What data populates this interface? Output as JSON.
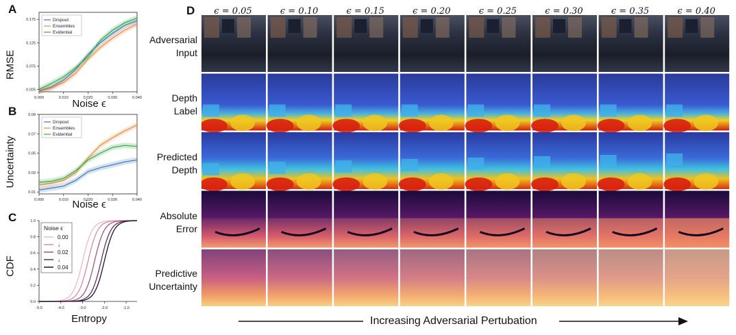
{
  "panels": {
    "a": {
      "letter": "A",
      "ylabel": "RMSE",
      "xlabel": "Noise ϵ"
    },
    "b": {
      "letter": "B",
      "ylabel": "Uncertainty",
      "xlabel": "Noise ϵ"
    },
    "c": {
      "letter": "C",
      "ylabel": "CDF",
      "xlabel": "Entropy",
      "legend_title": "Noise ϵ",
      "legend_labels": [
        "0.00",
        "0.02",
        "0.04"
      ],
      "legend_arrow": "↓"
    },
    "d": {
      "letter": "D"
    }
  },
  "grid": {
    "columns": [
      "ϵ = 0.05",
      "ϵ = 0.10",
      "ϵ = 0.15",
      "ϵ = 0.20",
      "ϵ = 0.25",
      "ϵ = 0.30",
      "ϵ = 0.35",
      "ϵ = 0.40"
    ],
    "rows": [
      {
        "line1": "Adversarial",
        "line2": "Input"
      },
      {
        "line1": "Depth",
        "line2": "Label"
      },
      {
        "line1": "Predicted",
        "line2": "Depth"
      },
      {
        "line1": "Absolute",
        "line2": "Error"
      },
      {
        "line1": "Predictive",
        "line2": "Uncertainty"
      }
    ],
    "footer": "Increasing Adversarial Pertubation"
  },
  "colors": {
    "dropout": "#3a78b8",
    "ensembles": "#f08a3a",
    "evidential": "#3aa84a"
  },
  "chart_data": [
    {
      "type": "line",
      "xlim": [
        0.0,
        0.04
      ],
      "ylim": [
        0.02,
        0.19
      ],
      "x_ticks": [
        "0.000",
        "0.010",
        "0.020",
        "0.030",
        "0.040"
      ],
      "y_ticks": [
        "0.025",
        "0.075",
        "0.125",
        "0.175"
      ],
      "legend": "top-left",
      "x": [
        0.0,
        0.005,
        0.01,
        0.015,
        0.02,
        0.025,
        0.03,
        0.035,
        0.04
      ],
      "series": [
        {
          "name": "Dropout",
          "values": [
            0.022,
            0.03,
            0.045,
            0.068,
            0.1,
            0.125,
            0.145,
            0.162,
            0.172
          ]
        },
        {
          "name": "Ensembles",
          "values": [
            0.021,
            0.028,
            0.04,
            0.06,
            0.09,
            0.115,
            0.135,
            0.152,
            0.165
          ]
        },
        {
          "name": "Evidential",
          "values": [
            0.025,
            0.038,
            0.052,
            0.072,
            0.095,
            0.13,
            0.152,
            0.168,
            0.178
          ]
        }
      ]
    },
    {
      "type": "line",
      "xlim": [
        0.0,
        0.04
      ],
      "ylim": [
        0.008,
        0.09
      ],
      "x_ticks": [
        "0.000",
        "0.010",
        "0.020",
        "0.030",
        "0.040"
      ],
      "y_ticks": [
        "0.01",
        "0.03",
        "0.05",
        "0.07",
        "0.09"
      ],
      "legend": "top-left",
      "x": [
        0.0,
        0.005,
        0.01,
        0.015,
        0.02,
        0.025,
        0.03,
        0.035,
        0.04
      ],
      "series": [
        {
          "name": "Dropout",
          "values": [
            0.012,
            0.014,
            0.016,
            0.022,
            0.031,
            0.035,
            0.038,
            0.041,
            0.043
          ]
        },
        {
          "name": "Ensembles",
          "values": [
            0.017,
            0.019,
            0.022,
            0.03,
            0.045,
            0.058,
            0.066,
            0.073,
            0.079
          ]
        },
        {
          "name": "Evidential",
          "values": [
            0.02,
            0.021,
            0.024,
            0.032,
            0.043,
            0.05,
            0.056,
            0.058,
            0.057
          ]
        }
      ]
    },
    {
      "type": "line",
      "xlim": [
        -5.0,
        -0.5
      ],
      "ylim": [
        0.0,
        1.0
      ],
      "x_ticks": [
        "-5.0",
        "-4.0",
        "-3.0",
        "-2.0",
        "-1.0"
      ],
      "y_ticks": [
        "0.0",
        "0.2",
        "0.4",
        "0.6",
        "0.8",
        "1.0"
      ],
      "legend": "top-left",
      "series": [
        {
          "noise": 0.0,
          "center": -3.0,
          "color": "#f2b8c4"
        },
        {
          "noise": 0.01,
          "center": -2.75,
          "color": "#d88aa0"
        },
        {
          "noise": 0.02,
          "center": -2.45,
          "color": "#a2557c"
        },
        {
          "noise": 0.03,
          "center": -2.15,
          "color": "#6a2a5c"
        },
        {
          "noise": 0.04,
          "center": -2.0,
          "color": "#1e0f30"
        }
      ]
    }
  ]
}
